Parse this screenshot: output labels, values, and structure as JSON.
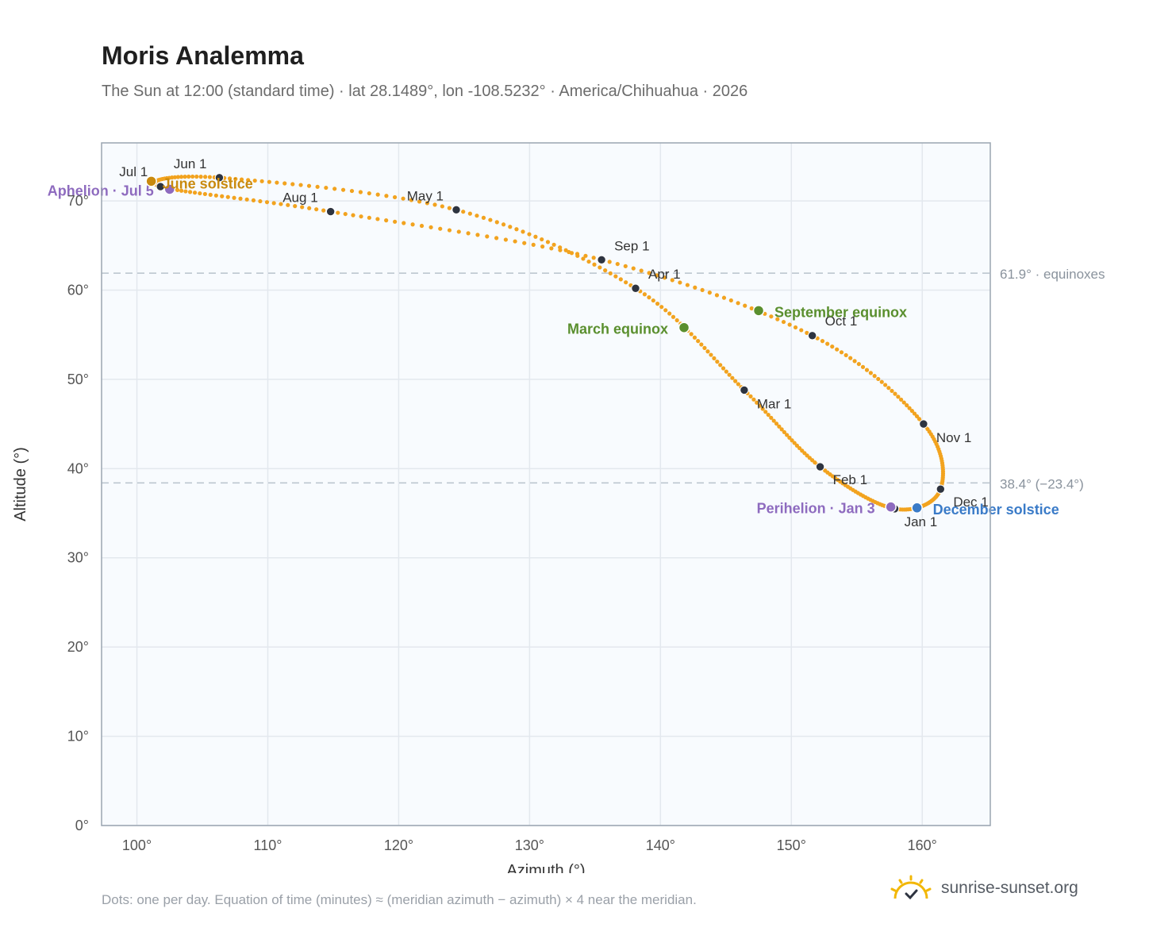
{
  "header": {
    "title": "Moris Analemma",
    "subtitle": "The Sun at 12:00 (standard time) · lat 28.1489°, lon -108.5232° · America/Chihuahua · 2026"
  },
  "footer": {
    "note": "Dots: one per day. Equation of time (minutes) ≈ (meridian azimuth − azimuth) × 4 near the meridian.",
    "brand": "sunrise-sunset.org"
  },
  "chart_data": {
    "type": "scatter",
    "xlabel": "Azimuth (°)",
    "ylabel": "Altitude (°)",
    "xlim": [
      97.3,
      165.2
    ],
    "ylim": [
      0,
      76.5
    ],
    "x_ticks": [
      100,
      110,
      120,
      130,
      140,
      150,
      160
    ],
    "x_tick_labels": [
      "100°",
      "110°",
      "120°",
      "130°",
      "140°",
      "150°",
      "160°"
    ],
    "y_ticks": [
      0,
      10,
      20,
      30,
      40,
      50,
      60,
      70
    ],
    "y_tick_labels": [
      "0°",
      "10°",
      "20°",
      "30°",
      "40°",
      "50°",
      "60°",
      "70°"
    ],
    "grid": true,
    "colors": {
      "curve": "#f2a31f",
      "month_marker": "#2e3440",
      "perihelion_aphelion": "#8e6bbf",
      "equinox": "#5a8f2e",
      "june_solstice": "#c98a0e",
      "december_solstice": "#3a7bc8",
      "reference_line": "#b8c2cc",
      "plot_background": "#f8fbfe",
      "plot_border": "#9aa5b1"
    },
    "reference_lines": [
      {
        "y": 61.9,
        "label": "61.9° · equinoxes"
      },
      {
        "y": 38.4,
        "label": "38.4° (−23.4°)"
      }
    ],
    "monthly_points": [
      {
        "label": "Jan 1",
        "az": 157.9,
        "alt": 35.5
      },
      {
        "label": "Feb 1",
        "az": 152.2,
        "alt": 40.2
      },
      {
        "label": "Mar 1",
        "az": 146.4,
        "alt": 48.8
      },
      {
        "label": "Apr 1",
        "az": 138.1,
        "alt": 60.2
      },
      {
        "label": "May 1",
        "az": 124.4,
        "alt": 69.0
      },
      {
        "label": "Jun 1",
        "az": 106.3,
        "alt": 72.6
      },
      {
        "label": "Jul 1",
        "az": 101.8,
        "alt": 71.6
      },
      {
        "label": "Aug 1",
        "az": 114.8,
        "alt": 68.8
      },
      {
        "label": "Sep 1",
        "az": 135.5,
        "alt": 63.4
      },
      {
        "label": "Oct 1",
        "az": 151.6,
        "alt": 54.9
      },
      {
        "label": "Nov 1",
        "az": 160.1,
        "alt": 45.0
      },
      {
        "label": "Dec 1",
        "az": 161.4,
        "alt": 37.7
      }
    ],
    "events": [
      {
        "label": "Aphelion · Jul 5",
        "az": 102.5,
        "alt": 71.3,
        "color_key": "perihelion_aphelion"
      },
      {
        "label": "June solstice",
        "az": 101.1,
        "alt": 72.2,
        "color_key": "june_solstice"
      },
      {
        "label": "March equinox",
        "az": 141.8,
        "alt": 55.8,
        "color_key": "equinox"
      },
      {
        "label": "September equinox",
        "az": 147.5,
        "alt": 57.7,
        "color_key": "equinox"
      },
      {
        "label": "Perihelion · Jan 3",
        "az": 157.6,
        "alt": 35.7,
        "color_key": "perihelion_aphelion"
      },
      {
        "label": "December solstice",
        "az": 159.6,
        "alt": 35.6,
        "color_key": "december_solstice"
      }
    ]
  }
}
